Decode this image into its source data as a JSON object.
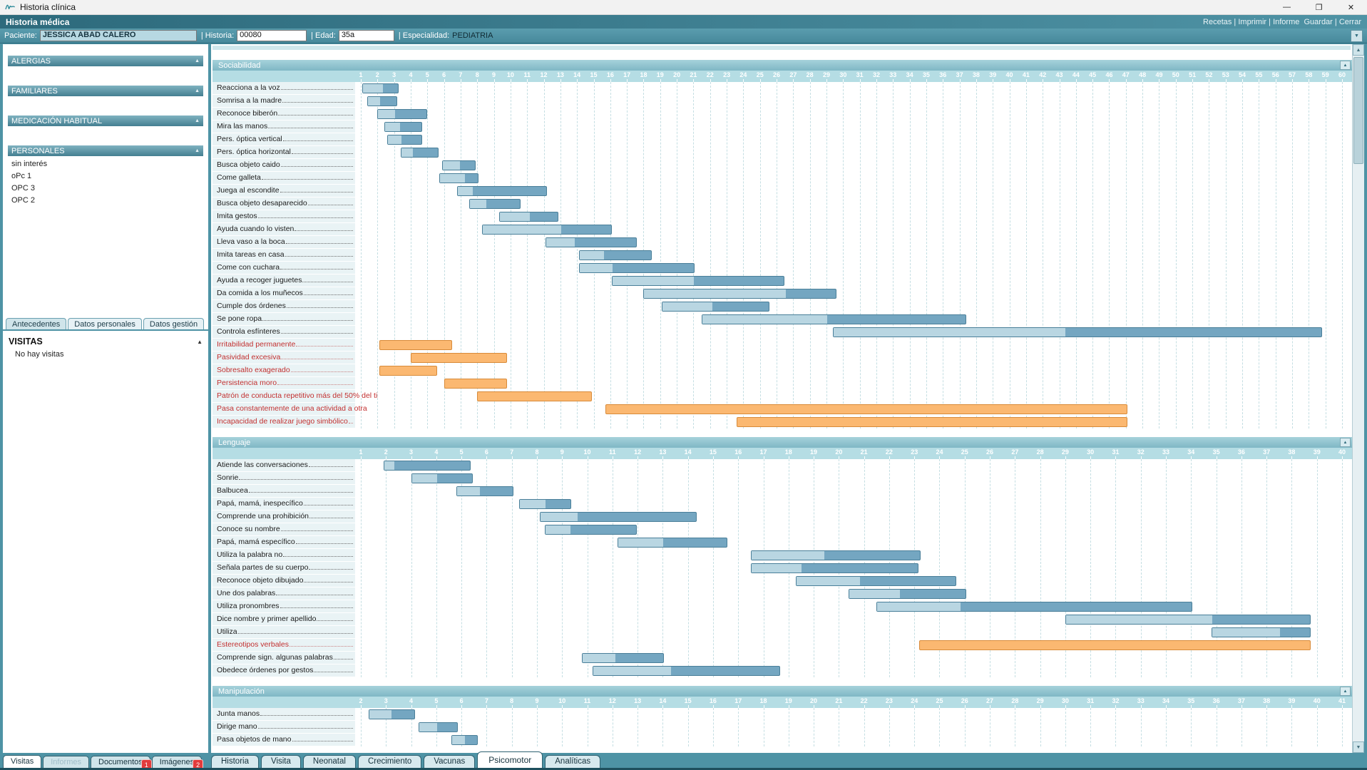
{
  "window": {
    "title": "Historia clínica"
  },
  "icons": {
    "collapse_arrow": "▲",
    "dropdown_arrow": "▼",
    "scroll_up": "▲",
    "scroll_down": "▼",
    "minimize": "—",
    "maximize": "❐",
    "close": "✕"
  },
  "header": {
    "title": "Historia médica",
    "links": [
      {
        "label": "Recetas",
        "sep": " | "
      },
      {
        "label": "Imprimir",
        "sep": " | "
      },
      {
        "label": "Informe",
        "sep": "  "
      },
      {
        "label": "Guardar",
        "sep": " | "
      },
      {
        "label": "Cerrar",
        "sep": ""
      }
    ]
  },
  "patient_bar": {
    "paciente_label": "Paciente:",
    "paciente_value": "JESSICA ABAD CALERO",
    "historia_label": "| Historia:",
    "historia_value": "00080",
    "edad_label": "| Edad:",
    "edad_value": "35a",
    "especialidad_label": "| Especialidad:",
    "especialidad_value": "PEDIATRIA"
  },
  "sidebar": {
    "sections": [
      {
        "label": "ALERGIAS",
        "items": []
      },
      {
        "label": "FAMILIARES",
        "items": []
      },
      {
        "label": "MEDICACIÓN HABITUAL",
        "items": []
      },
      {
        "label": "PERSONALES",
        "items": [
          "sin interés",
          "oPc 1",
          "OPC 3",
          "OPC 2"
        ]
      }
    ],
    "tabs": [
      {
        "label": "Antecedentes",
        "active": true
      },
      {
        "label": "Datos personales",
        "active": false
      },
      {
        "label": "Datos gestión",
        "active": false
      }
    ],
    "visitas": {
      "title": "VISITAS",
      "empty_text": "No hay visitas"
    },
    "bottom_tabs": [
      {
        "label": "Visitas",
        "active": true
      },
      {
        "label": "Informes",
        "disabled": true
      },
      {
        "label": "Documentos",
        "badge": "1"
      },
      {
        "label": "Imágenes",
        "badge": "2"
      }
    ]
  },
  "main_tabs": [
    {
      "label": "Historia"
    },
    {
      "label": "Visita"
    },
    {
      "label": "Neonatal"
    },
    {
      "label": "Crecimiento"
    },
    {
      "label": "Vacunas"
    },
    {
      "label": "Psicomotor",
      "active": true
    },
    {
      "label": "Analíticas"
    }
  ],
  "colors": {
    "header_teal_dark": "#2d6a7c",
    "header_teal_light": "#4f93a5",
    "section_header": "#7fb7c5",
    "ruler_bg": "#b5dde4",
    "bar_light": "#b9d6e2",
    "bar_dark": "#74a6c1",
    "bar_border": "#4a7f99",
    "alert_bar": "#fbb871",
    "alert_border": "#d88b3a",
    "alert_text": "#c23030",
    "badge_red": "#e23b3b"
  },
  "chart_data": [
    {
      "type": "gantt",
      "title": "Sociabilidad",
      "unit": "months",
      "axis": {
        "first": 1,
        "last": 60
      },
      "rows": [
        {
          "label": "Reacciona a la voz",
          "start": 1.1,
          "mid": 2.3,
          "end": 3.2
        },
        {
          "label": "Somrisa a la madre",
          "start": 1.4,
          "mid": 2.1,
          "end": 3.1
        },
        {
          "label": "Reconoce biberón",
          "start": 2.0,
          "mid": 3.0,
          "end": 4.9
        },
        {
          "label": "Mira las manos",
          "start": 2.4,
          "mid": 3.3,
          "end": 4.6
        },
        {
          "label": "Pers. óptica vertical",
          "start": 2.6,
          "mid": 3.4,
          "end": 4.6
        },
        {
          "label": "Pers. óptica horizontal",
          "start": 3.4,
          "mid": 4.1,
          "end": 5.6
        },
        {
          "label": "Busca objeto caido",
          "start": 5.9,
          "mid": 6.9,
          "end": 7.8
        },
        {
          "label": "Come galleta",
          "start": 5.7,
          "mid": 7.2,
          "end": 8.0
        },
        {
          "label": "Juega al escondite",
          "start": 6.8,
          "mid": 7.7,
          "end": 12.1
        },
        {
          "label": "Busca objeto desaparecido",
          "start": 7.5,
          "mid": 8.5,
          "end": 10.5
        },
        {
          "label": "Imita gestos",
          "start": 9.3,
          "mid": 11.1,
          "end": 12.8
        },
        {
          "label": "Ayuda cuando lo visten",
          "start": 8.3,
          "mid": 13.0,
          "end": 16.0
        },
        {
          "label": "Lleva vaso a la boca",
          "start": 12.1,
          "mid": 13.8,
          "end": 17.5
        },
        {
          "label": "Imita tareas en casa",
          "start": 14.1,
          "mid": 15.6,
          "end": 18.4
        },
        {
          "label": "Come con cuchara",
          "start": 14.1,
          "mid": 16.1,
          "end": 21.0
        },
        {
          "label": "Ayuda a recoger juguetes",
          "start": 16.1,
          "mid": 21.0,
          "end": 26.4
        },
        {
          "label": "Da comida a los muñecos",
          "start": 18.0,
          "mid": 26.5,
          "end": 29.5
        },
        {
          "label": "Cumple dos órdenes",
          "start": 19.1,
          "mid": 22.1,
          "end": 25.5
        },
        {
          "label": "Se pone ropa",
          "start": 21.5,
          "mid": 29.0,
          "end": 37.3
        },
        {
          "label": "Controla esfínteres",
          "start": 29.4,
          "mid": 43.3,
          "end": 58.7
        },
        {
          "label": "Irritabilidad permanente",
          "start": 2.1,
          "end": 6.4,
          "alert": true
        },
        {
          "label": "Pasividad excesiva",
          "start": 4.0,
          "end": 9.7,
          "alert": true
        },
        {
          "label": "Sobresalto exagerado",
          "start": 2.1,
          "end": 5.5,
          "alert": true
        },
        {
          "label": "Persistencia moro",
          "start": 6.0,
          "end": 9.7,
          "alert": true
        },
        {
          "label": "Patrón de conducta repetitivo más del 50% del ti",
          "start": 8.0,
          "end": 14.8,
          "alert": true
        },
        {
          "label": "Pasa constantemente de una actividad a otra",
          "start": 15.7,
          "end": 47.0,
          "alert": true
        },
        {
          "label": "Incapacidad de realizar juego simbólico",
          "start": 23.6,
          "end": 47.0,
          "alert": true
        }
      ]
    },
    {
      "type": "gantt",
      "title": "Lenguaje",
      "unit": "months",
      "axis": {
        "first": 1,
        "last": 40
      },
      "rows": [
        {
          "label": "Atiende las conversaciones",
          "start": 1.9,
          "mid": 2.3,
          "end": 5.3
        },
        {
          "label": "Sonrie",
          "start": 3.0,
          "mid": 4.0,
          "end": 5.4
        },
        {
          "label": "Balbucea",
          "start": 4.8,
          "mid": 5.7,
          "end": 7.0
        },
        {
          "label": "Papá, mamá, inespecífico",
          "start": 7.3,
          "mid": 8.3,
          "end": 9.3
        },
        {
          "label": "Comprende una prohibición",
          "start": 8.1,
          "mid": 9.6,
          "end": 14.3
        },
        {
          "label": "Conoce su nombre",
          "start": 8.3,
          "mid": 9.3,
          "end": 11.9
        },
        {
          "label": "Papá, mamá específico",
          "start": 11.2,
          "mid": 13.0,
          "end": 15.5
        },
        {
          "label": "Utiliza la palabra no",
          "start": 16.5,
          "mid": 19.4,
          "end": 23.2
        },
        {
          "label": "Señala partes de su cuerpo",
          "start": 16.5,
          "mid": 18.5,
          "end": 23.1
        },
        {
          "label": "Reconoce objeto dibujado",
          "start": 18.3,
          "mid": 20.8,
          "end": 24.6
        },
        {
          "label": "Une dos palabras",
          "start": 20.4,
          "mid": 22.4,
          "end": 25.0
        },
        {
          "label": "Utiliza pronombres",
          "start": 21.5,
          "mid": 24.8,
          "end": 34.0
        },
        {
          "label": "Dice nombre y primer apellido",
          "start": 29.0,
          "mid": 34.8,
          "end": 38.7
        },
        {
          "label": "Utiliza",
          "start": 34.8,
          "mid": 37.5,
          "end": 38.7
        },
        {
          "label": "Estereotipos verbales",
          "start": 23.2,
          "end": 38.7,
          "alert": true
        },
        {
          "label": "Comprende sign. algunas palabras",
          "start": 9.8,
          "mid": 11.1,
          "end": 13.0
        },
        {
          "label": "Obedece órdenes por gestos",
          "start": 10.2,
          "mid": 13.3,
          "end": 17.6
        }
      ]
    },
    {
      "type": "gantt",
      "title": "Manipulación",
      "unit": "months",
      "axis": {
        "first": 2,
        "last": 41
      },
      "rows": [
        {
          "label": "Junta manos",
          "start": 2.3,
          "mid": 3.2,
          "end": 4.1
        },
        {
          "label": "Dirige mano",
          "start": 4.3,
          "mid": 5.0,
          "end": 5.8
        },
        {
          "label": "Pasa objetos de mano",
          "start": 5.6,
          "mid": 6.1,
          "end": 6.6
        }
      ]
    }
  ]
}
